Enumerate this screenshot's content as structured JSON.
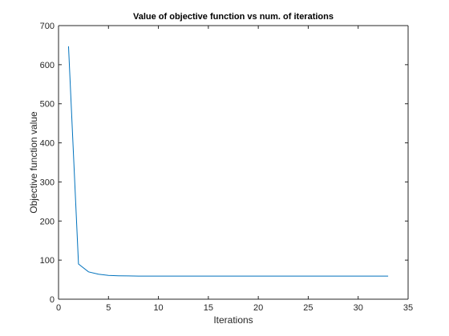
{
  "chart_data": {
    "type": "line",
    "title": "Value of objective function vs num. of iterations",
    "xlabel": "Iterations",
    "ylabel": "Objective function value",
    "xlim": [
      0,
      35
    ],
    "ylim": [
      0,
      700
    ],
    "xticks": [
      0,
      5,
      10,
      15,
      20,
      25,
      30,
      35
    ],
    "yticks": [
      0,
      100,
      200,
      300,
      400,
      500,
      600,
      700
    ],
    "grid": false,
    "series": [
      {
        "color": "#0072bd",
        "x": [
          1,
          2,
          3,
          4,
          5,
          6,
          7,
          8,
          9,
          10,
          11,
          12,
          13,
          14,
          15,
          16,
          17,
          18,
          19,
          20,
          21,
          22,
          23,
          24,
          25,
          26,
          27,
          28,
          29,
          30,
          31,
          32,
          33
        ],
        "y": [
          647,
          90,
          70,
          64,
          61,
          60,
          59.5,
          59.2,
          59.1,
          59,
          59,
          59,
          59,
          59,
          59,
          59,
          59,
          59,
          59,
          59,
          59,
          59,
          59,
          59,
          59,
          59,
          59,
          59,
          59,
          59,
          59,
          59,
          59
        ]
      }
    ]
  }
}
